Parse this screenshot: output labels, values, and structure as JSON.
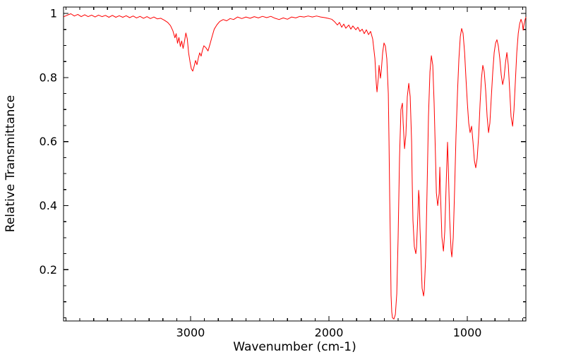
{
  "chart_data": {
    "type": "line",
    "title": "",
    "xlabel": "Wavenumber (cm-1)",
    "ylabel": "Relative Transmittance",
    "grid": false,
    "legend": false,
    "x_axis": {
      "left": 3918,
      "right": 577,
      "reversed": true,
      "major_ticks": [
        3000,
        2000,
        1000
      ],
      "tick_labels": [
        "3000",
        "2000",
        "1000"
      ],
      "minor_step": 100
    },
    "y_axis": {
      "min": 0.04,
      "max": 1.02,
      "major_ticks": [
        0.2,
        0.4,
        0.6,
        0.8,
        1.0
      ],
      "tick_labels": [
        "0.2",
        "0.4",
        "0.6",
        "0.8",
        "1"
      ],
      "minor_step": 0.05
    },
    "series": [
      {
        "color": "#ff0000",
        "points": [
          [
            3915,
            0.99
          ],
          [
            3890,
            0.995
          ],
          [
            3865,
            0.999
          ],
          [
            3840,
            0.992
          ],
          [
            3815,
            0.997
          ],
          [
            3790,
            0.99
          ],
          [
            3765,
            0.996
          ],
          [
            3740,
            0.99
          ],
          [
            3715,
            0.995
          ],
          [
            3690,
            0.989
          ],
          [
            3665,
            0.995
          ],
          [
            3640,
            0.99
          ],
          [
            3615,
            0.994
          ],
          [
            3590,
            0.988
          ],
          [
            3565,
            0.994
          ],
          [
            3540,
            0.988
          ],
          [
            3515,
            0.993
          ],
          [
            3490,
            0.988
          ],
          [
            3465,
            0.993
          ],
          [
            3440,
            0.987
          ],
          [
            3415,
            0.992
          ],
          [
            3390,
            0.986
          ],
          [
            3365,
            0.991
          ],
          [
            3340,
            0.985
          ],
          [
            3315,
            0.99
          ],
          [
            3290,
            0.984
          ],
          [
            3265,
            0.989
          ],
          [
            3240,
            0.983
          ],
          [
            3215,
            0.985
          ],
          [
            3190,
            0.979
          ],
          [
            3165,
            0.972
          ],
          [
            3145,
            0.962
          ],
          [
            3128,
            0.946
          ],
          [
            3113,
            0.924
          ],
          [
            3104,
            0.937
          ],
          [
            3094,
            0.907
          ],
          [
            3084,
            0.925
          ],
          [
            3074,
            0.897
          ],
          [
            3064,
            0.914
          ],
          [
            3054,
            0.891
          ],
          [
            3044,
            0.912
          ],
          [
            3034,
            0.939
          ],
          [
            3024,
            0.921
          ],
          [
            3014,
            0.877
          ],
          [
            3004,
            0.849
          ],
          [
            2994,
            0.827
          ],
          [
            2984,
            0.82
          ],
          [
            2974,
            0.836
          ],
          [
            2964,
            0.853
          ],
          [
            2954,
            0.84
          ],
          [
            2944,
            0.861
          ],
          [
            2934,
            0.877
          ],
          [
            2924,
            0.867
          ],
          [
            2914,
            0.885
          ],
          [
            2904,
            0.899
          ],
          [
            2889,
            0.893
          ],
          [
            2874,
            0.883
          ],
          [
            2859,
            0.905
          ],
          [
            2844,
            0.929
          ],
          [
            2829,
            0.951
          ],
          [
            2809,
            0.965
          ],
          [
            2789,
            0.975
          ],
          [
            2764,
            0.981
          ],
          [
            2739,
            0.977
          ],
          [
            2714,
            0.984
          ],
          [
            2689,
            0.981
          ],
          [
            2660,
            0.989
          ],
          [
            2630,
            0.984
          ],
          [
            2600,
            0.989
          ],
          [
            2570,
            0.985
          ],
          [
            2540,
            0.99
          ],
          [
            2510,
            0.986
          ],
          [
            2480,
            0.991
          ],
          [
            2450,
            0.987
          ],
          [
            2420,
            0.991
          ],
          [
            2390,
            0.985
          ],
          [
            2360,
            0.981
          ],
          [
            2330,
            0.986
          ],
          [
            2300,
            0.982
          ],
          [
            2270,
            0.989
          ],
          [
            2240,
            0.986
          ],
          [
            2210,
            0.991
          ],
          [
            2180,
            0.989
          ],
          [
            2150,
            0.992
          ],
          [
            2120,
            0.989
          ],
          [
            2090,
            0.992
          ],
          [
            2060,
            0.989
          ],
          [
            2030,
            0.987
          ],
          [
            2000,
            0.984
          ],
          [
            1980,
            0.982
          ],
          [
            1959,
            0.974
          ],
          [
            1939,
            0.964
          ],
          [
            1924,
            0.972
          ],
          [
            1908,
            0.957
          ],
          [
            1893,
            0.967
          ],
          [
            1878,
            0.954
          ],
          [
            1857,
            0.964
          ],
          [
            1842,
            0.951
          ],
          [
            1827,
            0.961
          ],
          [
            1806,
            0.949
          ],
          [
            1791,
            0.957
          ],
          [
            1776,
            0.944
          ],
          [
            1760,
            0.951
          ],
          [
            1745,
            0.937
          ],
          [
            1730,
            0.949
          ],
          [
            1714,
            0.934
          ],
          [
            1699,
            0.944
          ],
          [
            1684,
            0.92
          ],
          [
            1668,
            0.86
          ],
          [
            1658,
            0.78
          ],
          [
            1653,
            0.755
          ],
          [
            1643,
            0.8
          ],
          [
            1638,
            0.838
          ],
          [
            1628,
            0.798
          ],
          [
            1622,
            0.82
          ],
          [
            1612,
            0.878
          ],
          [
            1602,
            0.908
          ],
          [
            1592,
            0.898
          ],
          [
            1582,
            0.858
          ],
          [
            1571,
            0.75
          ],
          [
            1566,
            0.6
          ],
          [
            1561,
            0.42
          ],
          [
            1556,
            0.28
          ],
          [
            1551,
            0.12
          ],
          [
            1546,
            0.068
          ],
          [
            1541,
            0.05
          ],
          [
            1531,
            0.046
          ],
          [
            1520,
            0.06
          ],
          [
            1510,
            0.125
          ],
          [
            1500,
            0.3
          ],
          [
            1490,
            0.55
          ],
          [
            1480,
            0.7
          ],
          [
            1469,
            0.72
          ],
          [
            1464,
            0.66
          ],
          [
            1454,
            0.578
          ],
          [
            1444,
            0.62
          ],
          [
            1434,
            0.74
          ],
          [
            1423,
            0.782
          ],
          [
            1413,
            0.74
          ],
          [
            1403,
            0.6
          ],
          [
            1398,
            0.47
          ],
          [
            1393,
            0.355
          ],
          [
            1383,
            0.272
          ],
          [
            1372,
            0.25
          ],
          [
            1367,
            0.27
          ],
          [
            1357,
            0.378
          ],
          [
            1352,
            0.448
          ],
          [
            1347,
            0.42
          ],
          [
            1342,
            0.33
          ],
          [
            1337,
            0.272
          ],
          [
            1332,
            0.2
          ],
          [
            1327,
            0.142
          ],
          [
            1316,
            0.118
          ],
          [
            1311,
            0.138
          ],
          [
            1301,
            0.242
          ],
          [
            1291,
            0.448
          ],
          [
            1281,
            0.678
          ],
          [
            1270,
            0.818
          ],
          [
            1260,
            0.868
          ],
          [
            1250,
            0.838
          ],
          [
            1240,
            0.72
          ],
          [
            1230,
            0.548
          ],
          [
            1224,
            0.44
          ],
          [
            1214,
            0.4
          ],
          [
            1204,
            0.438
          ],
          [
            1199,
            0.52
          ],
          [
            1194,
            0.44
          ],
          [
            1184,
            0.302
          ],
          [
            1173,
            0.258
          ],
          [
            1163,
            0.32
          ],
          [
            1153,
            0.468
          ],
          [
            1143,
            0.598
          ],
          [
            1138,
            0.53
          ],
          [
            1128,
            0.358
          ],
          [
            1117,
            0.258
          ],
          [
            1112,
            0.24
          ],
          [
            1102,
            0.3
          ],
          [
            1092,
            0.448
          ],
          [
            1082,
            0.618
          ],
          [
            1071,
            0.758
          ],
          [
            1061,
            0.858
          ],
          [
            1051,
            0.928
          ],
          [
            1041,
            0.953
          ],
          [
            1031,
            0.938
          ],
          [
            1020,
            0.878
          ],
          [
            1010,
            0.798
          ],
          [
            1000,
            0.72
          ],
          [
            990,
            0.658
          ],
          [
            980,
            0.628
          ],
          [
            969,
            0.648
          ],
          [
            959,
            0.598
          ],
          [
            949,
            0.54
          ],
          [
            939,
            0.518
          ],
          [
            929,
            0.548
          ],
          [
            918,
            0.618
          ],
          [
            908,
            0.718
          ],
          [
            898,
            0.798
          ],
          [
            888,
            0.838
          ],
          [
            878,
            0.818
          ],
          [
            867,
            0.758
          ],
          [
            857,
            0.678
          ],
          [
            847,
            0.628
          ],
          [
            837,
            0.658
          ],
          [
            827,
            0.738
          ],
          [
            816,
            0.818
          ],
          [
            806,
            0.878
          ],
          [
            796,
            0.908
          ],
          [
            786,
            0.918
          ],
          [
            776,
            0.898
          ],
          [
            765,
            0.858
          ],
          [
            755,
            0.808
          ],
          [
            745,
            0.778
          ],
          [
            735,
            0.798
          ],
          [
            724,
            0.848
          ],
          [
            714,
            0.878
          ],
          [
            704,
            0.838
          ],
          [
            694,
            0.758
          ],
          [
            684,
            0.678
          ],
          [
            673,
            0.648
          ],
          [
            663,
            0.698
          ],
          [
            653,
            0.788
          ],
          [
            643,
            0.878
          ],
          [
            632,
            0.938
          ],
          [
            622,
            0.968
          ],
          [
            612,
            0.982
          ],
          [
            602,
            0.968
          ],
          [
            597,
            0.948
          ],
          [
            592,
            0.962
          ],
          [
            582,
            0.982
          ],
          [
            577,
            0.988
          ]
        ]
      }
    ],
    "frame_color": "#000000",
    "text_color": "#000000"
  }
}
